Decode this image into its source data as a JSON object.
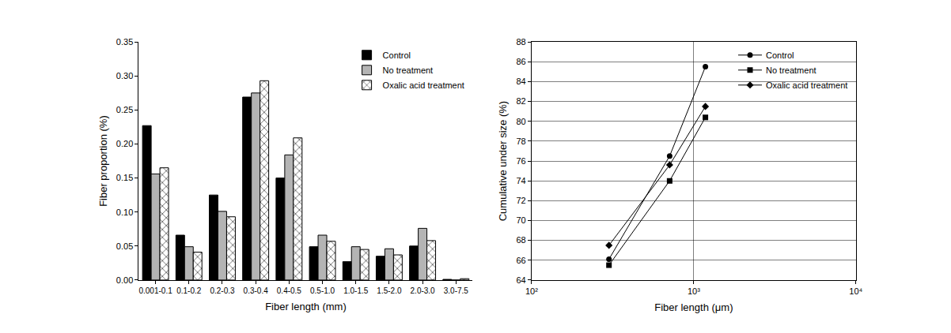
{
  "chart_data": [
    {
      "type": "bar",
      "categories": [
        "0.001-0.1",
        "0.1-0.2",
        "0.2-0.3",
        "0.3-0.4",
        "0.4-0.5",
        "0.5-1.0",
        "1.0-1.5",
        "1.5-2.0",
        "2.0-3.0",
        "3.0-7.5"
      ],
      "series": [
        {
          "name": "Control",
          "color": "#000000",
          "values": [
            0.227,
            0.066,
            0.125,
            0.269,
            0.15,
            0.049,
            0.027,
            0.035,
            0.05,
            0.001
          ]
        },
        {
          "name": "No treatment",
          "color": "#b4b4b4",
          "values": [
            0.156,
            0.049,
            0.101,
            0.275,
            0.184,
            0.066,
            0.049,
            0.046,
            0.076,
            0.0
          ]
        },
        {
          "name": "Oxalic acid treatment",
          "color": "#ffffff",
          "marker": "crosshatch",
          "values": [
            0.165,
            0.041,
            0.093,
            0.293,
            0.209,
            0.057,
            0.045,
            0.037,
            0.058,
            0.002
          ]
        }
      ],
      "xlabel": "Fiber length (mm)",
      "ylabel": "Fiber proportion (%)",
      "ylim": [
        0,
        0.35
      ],
      "yticks": [
        {
          "value": 0,
          "label": "0.00"
        },
        0.05,
        {
          "value": 0.1,
          "label": "0.10"
        },
        0.15,
        {
          "value": 0.2,
          "label": "0.20"
        },
        0.25,
        {
          "value": 0.3,
          "label": "0.30"
        },
        0.35
      ],
      "legend": "top right",
      "grid": false
    },
    {
      "type": "line",
      "x": [
        300,
        710,
        1180
      ],
      "series": [
        {
          "name": "Control",
          "color": "#000000",
          "marker": "circle",
          "line_style": "solid",
          "values": [
            66.1,
            76.5,
            85.5
          ]
        },
        {
          "name": "No treatment",
          "color": "#000000",
          "marker": "square",
          "line_style": "solid",
          "values": [
            65.5,
            74.0,
            80.4
          ]
        },
        {
          "name": "Oxalic acid treatment",
          "color": "#000000",
          "marker": "diamond",
          "line_style": "solid",
          "values": [
            67.5,
            75.6,
            81.5
          ]
        }
      ],
      "xlabel": "Fiber length (μm)",
      "ylabel": "Cumulative under size (%)",
      "log": "x",
      "xlim": [
        100,
        10000
      ],
      "xticks": [
        {
          "value": 100,
          "label": "10²"
        },
        {
          "value": 1000,
          "label": "10³"
        },
        {
          "value": 10000,
          "label": "10⁴"
        }
      ],
      "ylim": [
        64,
        88
      ],
      "yticks": [
        64,
        66,
        68,
        70,
        72,
        74,
        76,
        78,
        80,
        82,
        84,
        86,
        88
      ],
      "legend": "top right",
      "grid": true
    }
  ]
}
